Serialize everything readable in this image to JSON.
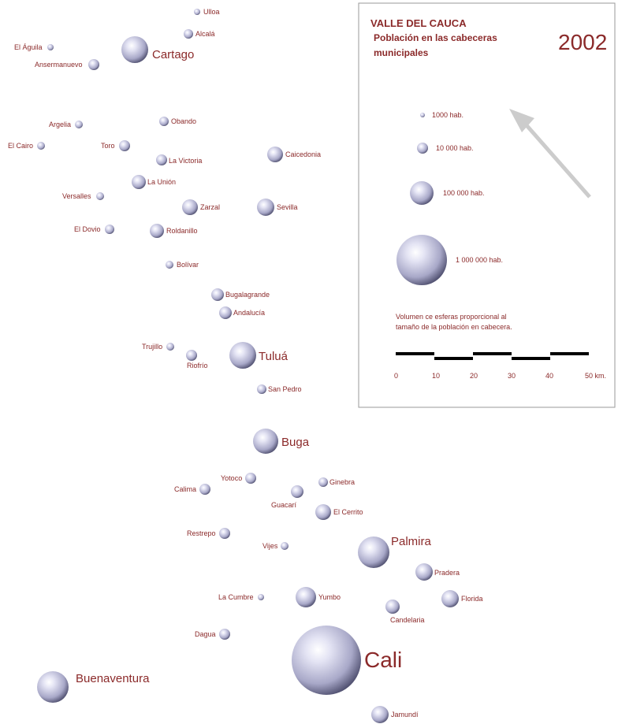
{
  "map": {
    "title_line1": "VALLE DEL CAUCA",
    "title_line2": "Población en las cabeceras",
    "title_line3": "municipales",
    "year": "2002",
    "legend": {
      "items": [
        {
          "label": "1000 hab."
        },
        {
          "label": "10 000 hab."
        },
        {
          "label": "100 000 hab."
        },
        {
          "label": "1 000 000 hab."
        }
      ],
      "note_line1": "Volumen ce esferas proporcional al",
      "note_line2": "tamaño de la población en cabecera.",
      "scale_labels": [
        "0",
        "10",
        "20",
        "30",
        "40",
        "50 km."
      ]
    },
    "north_arrow": "north-arrow-icon",
    "sphere_color": "#b8b8d8",
    "label_color": "#8b2a2a",
    "cities": [
      {
        "name": "Ulloa"
      },
      {
        "name": "Alcalá"
      },
      {
        "name": "El Águila"
      },
      {
        "name": "Cartago"
      },
      {
        "name": "Ansermanuevo"
      },
      {
        "name": "Argelia"
      },
      {
        "name": "Obando"
      },
      {
        "name": "El Cairo"
      },
      {
        "name": "Toro"
      },
      {
        "name": "La Victoria"
      },
      {
        "name": "Caicedonia"
      },
      {
        "name": "La Unión"
      },
      {
        "name": "Versalles"
      },
      {
        "name": "Zarzal"
      },
      {
        "name": "Sevilla"
      },
      {
        "name": "El Dovio"
      },
      {
        "name": "Roldanillo"
      },
      {
        "name": "Bolívar"
      },
      {
        "name": "Bugalagrande"
      },
      {
        "name": "Andalucía"
      },
      {
        "name": "Trujillo"
      },
      {
        "name": "Riofrío"
      },
      {
        "name": "Tuluá"
      },
      {
        "name": "San Pedro"
      },
      {
        "name": "Buga"
      },
      {
        "name": "Yotoco"
      },
      {
        "name": "Ginebra"
      },
      {
        "name": "Calima"
      },
      {
        "name": "Guacarí"
      },
      {
        "name": "El Cerrito"
      },
      {
        "name": "Restrepo"
      },
      {
        "name": "Vijes"
      },
      {
        "name": "Palmira"
      },
      {
        "name": "Pradera"
      },
      {
        "name": "La Cumbre"
      },
      {
        "name": "Yumbo"
      },
      {
        "name": "Florida"
      },
      {
        "name": "Candelaria"
      },
      {
        "name": "Dagua"
      },
      {
        "name": "Cali"
      },
      {
        "name": "Buenaventura"
      },
      {
        "name": "Jamundí"
      }
    ]
  }
}
